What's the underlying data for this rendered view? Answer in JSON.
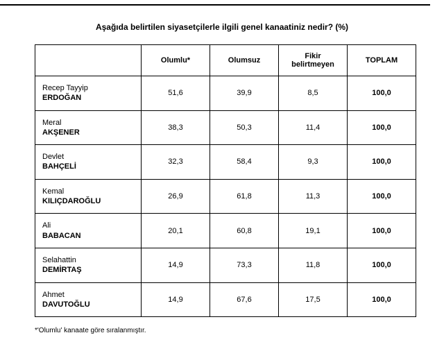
{
  "title": "Aşağıda belirtilen siyasetçilerle ilgili genel kanaatiniz nedir? (%)",
  "columns": {
    "name": "",
    "c1": "Olumlu*",
    "c2": "Olumsuz",
    "c3": "Fikir belirtmeyen",
    "c4": "TOPLAM"
  },
  "rows": [
    {
      "first": "Recep Tayyip",
      "last": "ERDOĞAN",
      "c1": "51,6",
      "c2": "39,9",
      "c3": "8,5",
      "c4": "100,0"
    },
    {
      "first": "Meral",
      "last": "AKŞENER",
      "c1": "38,3",
      "c2": "50,3",
      "c3": "11,4",
      "c4": "100,0"
    },
    {
      "first": "Devlet",
      "last": "BAHÇELİ",
      "c1": "32,3",
      "c2": "58,4",
      "c3": "9,3",
      "c4": "100,0"
    },
    {
      "first": "Kemal",
      "last": "KILIÇDAROĞLU",
      "c1": "26,9",
      "c2": "61,8",
      "c3": "11,3",
      "c4": "100,0"
    },
    {
      "first": "Ali",
      "last": "BABACAN",
      "c1": "20,1",
      "c2": "60,8",
      "c3": "19,1",
      "c4": "100,0"
    },
    {
      "first": "Selahattin",
      "last": "DEMİRTAŞ",
      "c1": "14,9",
      "c2": "73,3",
      "c3": "11,8",
      "c4": "100,0"
    },
    {
      "first": "Ahmet",
      "last": "DAVUTOĞLU",
      "c1": "14,9",
      "c2": "67,6",
      "c3": "17,5",
      "c4": "100,0"
    }
  ],
  "footnote": "*'Olumlu' kanaate göre sıralanmıştır."
}
